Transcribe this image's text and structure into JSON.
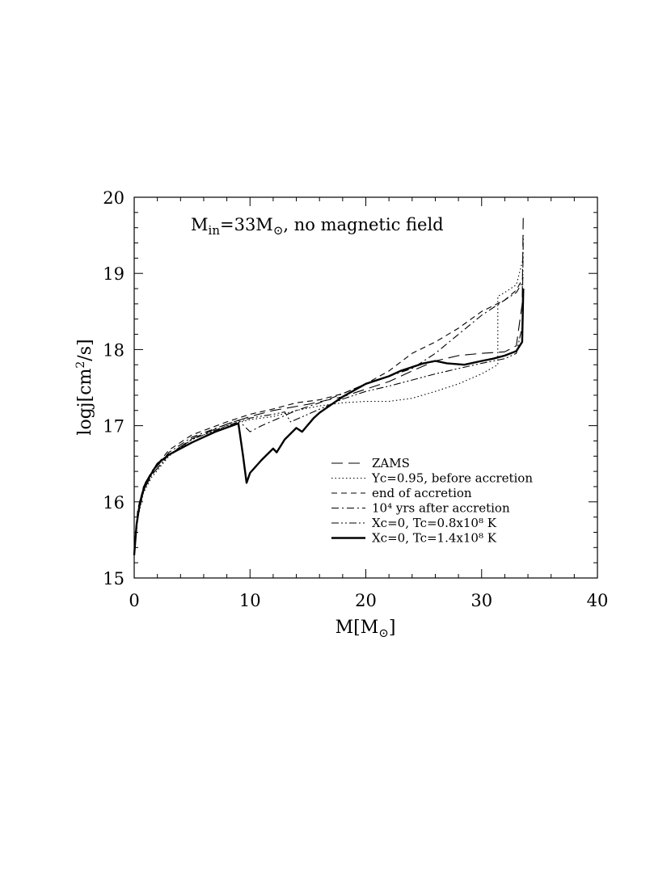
{
  "chart_data": {
    "type": "line",
    "title": "M_in=33M_⊙, no magnetic field",
    "title_parts": {
      "m": "M",
      "sub": "in",
      "eq": "=33M",
      "sun": "⊙",
      "rest": ", no magnetic field"
    },
    "xlabel": "M[M⊙]",
    "xlabel_parts": {
      "pre": "M[M",
      "sun": "⊙",
      "post": "]"
    },
    "ylabel": "logj[cm²/s]",
    "ylabel_parts": {
      "pre": "logj[cm",
      "sup": "2",
      "post": "/s]"
    },
    "xlim": [
      0,
      40
    ],
    "ylim": [
      15,
      20
    ],
    "x_ticks": [
      "0",
      "10",
      "20",
      "30",
      "40"
    ],
    "y_ticks": [
      "15",
      "16",
      "17",
      "18",
      "19",
      "20"
    ],
    "grid": false,
    "legend_position": "lower-right",
    "series": [
      {
        "name": "ZAMS",
        "dash": "long-dash",
        "points": [
          [
            0,
            15.3
          ],
          [
            0.3,
            15.8
          ],
          [
            0.8,
            16.15
          ],
          [
            1.5,
            16.35
          ],
          [
            3,
            16.62
          ],
          [
            5,
            16.83
          ],
          [
            8,
            17.02
          ],
          [
            10,
            17.12
          ],
          [
            12,
            17.2
          ],
          [
            15,
            17.28
          ],
          [
            18,
            17.38
          ],
          [
            20,
            17.48
          ],
          [
            22,
            17.58
          ],
          [
            24,
            17.72
          ],
          [
            26,
            17.85
          ],
          [
            28,
            17.92
          ],
          [
            30,
            17.95
          ],
          [
            32,
            17.97
          ],
          [
            33,
            18.05
          ],
          [
            33.5,
            18.6
          ],
          [
            33.6,
            19.8
          ]
        ]
      },
      {
        "name": "Yc=0.95, before accretion",
        "dash": "dotted",
        "points": [
          [
            0,
            15.3
          ],
          [
            0.3,
            15.78
          ],
          [
            0.8,
            16.12
          ],
          [
            1.5,
            16.32
          ],
          [
            3,
            16.6
          ],
          [
            5,
            16.82
          ],
          [
            8,
            17.0
          ],
          [
            10,
            17.08
          ],
          [
            12,
            17.12
          ],
          [
            14,
            17.2
          ],
          [
            16,
            17.26
          ],
          [
            18,
            17.3
          ],
          [
            20,
            17.32
          ],
          [
            22,
            17.32
          ],
          [
            24,
            17.36
          ],
          [
            26,
            17.45
          ],
          [
            28,
            17.55
          ],
          [
            30,
            17.68
          ],
          [
            31.4,
            17.8
          ],
          [
            31.4,
            18.7
          ],
          [
            32,
            18.75
          ],
          [
            33,
            18.85
          ],
          [
            33.6,
            19.2
          ]
        ]
      },
      {
        "name": "end of accretion",
        "dash": "dashed",
        "points": [
          [
            0,
            15.3
          ],
          [
            0.3,
            15.9
          ],
          [
            0.8,
            16.2
          ],
          [
            1.5,
            16.4
          ],
          [
            3,
            16.68
          ],
          [
            5,
            16.88
          ],
          [
            8,
            17.05
          ],
          [
            10,
            17.15
          ],
          [
            12,
            17.22
          ],
          [
            14,
            17.3
          ],
          [
            16,
            17.34
          ],
          [
            18,
            17.42
          ],
          [
            20,
            17.55
          ],
          [
            22,
            17.72
          ],
          [
            24,
            17.95
          ],
          [
            26,
            18.1
          ],
          [
            28,
            18.28
          ],
          [
            30,
            18.5
          ],
          [
            32,
            18.65
          ],
          [
            33,
            18.78
          ],
          [
            33.6,
            18.95
          ]
        ]
      },
      {
        "name": "10⁴ yrs after accretion",
        "dash": "dash-dot",
        "points": [
          [
            0,
            15.3
          ],
          [
            0.3,
            15.85
          ],
          [
            0.8,
            16.2
          ],
          [
            1.5,
            16.38
          ],
          [
            3,
            16.65
          ],
          [
            5,
            16.85
          ],
          [
            8,
            17.02
          ],
          [
            9,
            17.07
          ],
          [
            10,
            16.92
          ],
          [
            11,
            17.0
          ],
          [
            12.5,
            17.1
          ],
          [
            14,
            17.2
          ],
          [
            16,
            17.3
          ],
          [
            18,
            17.42
          ],
          [
            20,
            17.55
          ],
          [
            22,
            17.65
          ],
          [
            24,
            17.75
          ],
          [
            26,
            17.95
          ],
          [
            28,
            18.2
          ],
          [
            30,
            18.45
          ],
          [
            32,
            18.65
          ],
          [
            33,
            18.75
          ],
          [
            33.6,
            18.9
          ]
        ]
      },
      {
        "name": "Xc=0, Tc=0.8x10⁸ K",
        "dash": "dash-dot-dot",
        "points": [
          [
            0,
            15.3
          ],
          [
            0.3,
            15.8
          ],
          [
            0.8,
            16.15
          ],
          [
            1.5,
            16.35
          ],
          [
            3,
            16.62
          ],
          [
            5,
            16.82
          ],
          [
            8,
            17.0
          ],
          [
            10,
            17.1
          ],
          [
            12,
            17.15
          ],
          [
            13,
            17.18
          ],
          [
            13.5,
            17.05
          ],
          [
            15,
            17.15
          ],
          [
            18,
            17.35
          ],
          [
            20,
            17.45
          ],
          [
            22,
            17.52
          ],
          [
            24,
            17.6
          ],
          [
            26,
            17.68
          ],
          [
            28,
            17.75
          ],
          [
            30,
            17.82
          ],
          [
            32,
            17.88
          ],
          [
            33,
            17.95
          ],
          [
            33.5,
            18.3
          ],
          [
            33.6,
            19.5
          ]
        ]
      },
      {
        "name": "Xc=0, Tc=1.4x10⁸ K",
        "dash": "solid",
        "points": [
          [
            0,
            15.3
          ],
          [
            0.2,
            15.7
          ],
          [
            0.5,
            16.0
          ],
          [
            1,
            16.25
          ],
          [
            2,
            16.5
          ],
          [
            3,
            16.62
          ],
          [
            5,
            16.78
          ],
          [
            7,
            16.92
          ],
          [
            9,
            17.03
          ],
          [
            9.4,
            16.6
          ],
          [
            9.7,
            16.25
          ],
          [
            10,
            16.38
          ],
          [
            11,
            16.55
          ],
          [
            12,
            16.7
          ],
          [
            12.3,
            16.65
          ],
          [
            13,
            16.82
          ],
          [
            14,
            16.97
          ],
          [
            14.5,
            16.92
          ],
          [
            15.5,
            17.1
          ],
          [
            16,
            17.17
          ],
          [
            18,
            17.38
          ],
          [
            20,
            17.55
          ],
          [
            22,
            17.65
          ],
          [
            23,
            17.72
          ],
          [
            25,
            17.82
          ],
          [
            26,
            17.85
          ],
          [
            27,
            17.82
          ],
          [
            28.5,
            17.8
          ],
          [
            30,
            17.85
          ],
          [
            31,
            17.88
          ],
          [
            32,
            17.92
          ],
          [
            33,
            17.98
          ],
          [
            33.5,
            18.1
          ],
          [
            33.6,
            18.8
          ]
        ]
      }
    ]
  }
}
